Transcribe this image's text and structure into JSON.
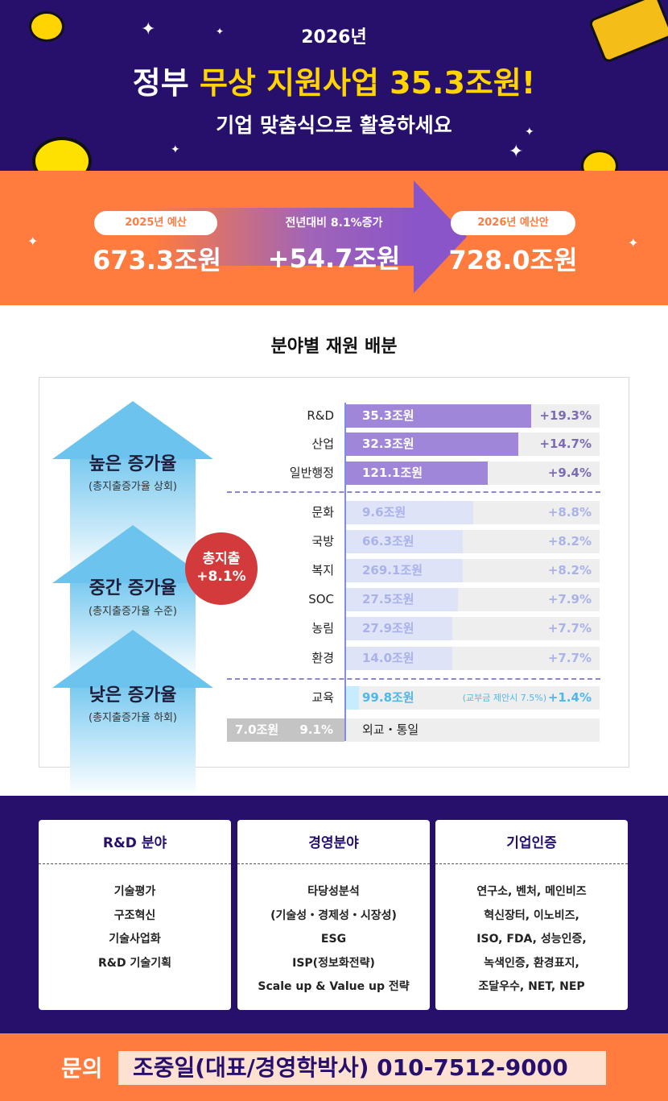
{
  "header": {
    "year": "2026년",
    "title_prefix": "정부 ",
    "title_highlight": "무상 지원사업 35.3조원!",
    "subtitle": "기업 맞춤식으로 활용하세요"
  },
  "budget": {
    "prev_label": "2025년 예산",
    "prev_value": "673.3조원",
    "change_label": "전년대비 8.1%증가",
    "change_value": "+54.7조원",
    "next_label": "2026년 예산안",
    "next_value": "728.0조원"
  },
  "section_title": "분야별 재원 배분",
  "groups": {
    "high": {
      "title": "높은 증가율",
      "sub": "(총지출증가율 상회)"
    },
    "mid": {
      "title": "중간 증가율",
      "sub": "(총지출증가율 수준)"
    },
    "low": {
      "title": "낮은 증가율",
      "sub": "(총지출증가율 하회)"
    },
    "total_badge_line1": "총지출",
    "total_badge_line2": "+8.1%"
  },
  "chart_data": {
    "type": "bar",
    "title": "분야별 재원 배분",
    "categories": [
      "R&D",
      "산업",
      "일반행정",
      "문화",
      "국방",
      "복지",
      "SOC",
      "농림",
      "환경",
      "교육",
      "외교・통일"
    ],
    "amount_labels": [
      "35.3조원",
      "32.3조원",
      "121.1조원",
      "9.6조원",
      "66.3조원",
      "269.1조원",
      "27.5조원",
      "27.9조원",
      "14.0조원",
      "99.8조원",
      "7.0조원"
    ],
    "amounts_trillion_won": [
      35.3,
      32.3,
      121.1,
      9.6,
      66.3,
      269.1,
      27.5,
      27.9,
      14.0,
      99.8,
      7.0
    ],
    "growth_labels": [
      "+19.3%",
      "+14.7%",
      "+9.4%",
      "+8.8%",
      "+8.2%",
      "+8.2%",
      "+7.9%",
      "+7.7%",
      "+7.7%",
      "+1.4%",
      "9.1%"
    ],
    "growth_pct": [
      19.3,
      14.7,
      9.4,
      8.8,
      8.2,
      8.2,
      7.9,
      7.7,
      7.7,
      1.4,
      9.1
    ],
    "bar_fill": [
      0.73,
      0.68,
      0.56,
      0.5,
      0.46,
      0.46,
      0.44,
      0.42,
      0.42,
      0.05,
      0
    ],
    "group": [
      "high",
      "high",
      "high",
      "mid",
      "mid",
      "mid",
      "mid",
      "mid",
      "mid",
      "low",
      "low"
    ],
    "edu_note": "(교부금 제안시 7.5%)"
  },
  "colors": {
    "navy": "#26106c",
    "orange": "#ff7b3e",
    "high_bar": "#9f86d9",
    "mid_bar": "#dfe3f8",
    "low_bar": "#c7ecfd",
    "badge": "#d33a3c"
  },
  "cards": [
    {
      "title": "R&D 분야",
      "items": [
        "기술평가",
        "구조혁신",
        "기술사업화",
        "R&D 기술기획"
      ]
    },
    {
      "title": "경영분야",
      "items": [
        "타당성분석",
        "(기술성・경제성・시장성)",
        "ESG",
        "ISP(정보화전략)",
        "Scale  up & Value up 전략"
      ]
    },
    {
      "title": "기업인증",
      "items": [
        "연구소, 벤처, 메인비즈",
        "혁신장터, 이노비즈,",
        "ISO, FDA, 성능인증,",
        "녹색인증, 환경표지,",
        "조달우수, NET, NEP"
      ]
    }
  ],
  "footer": {
    "label": "문의",
    "contact": "조중일(대표/경영학박사) 010-7512-9000"
  }
}
